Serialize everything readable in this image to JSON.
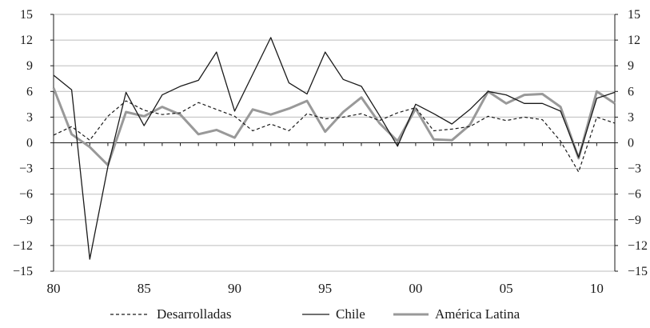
{
  "chart_data": {
    "type": "line",
    "title": "",
    "xlabel": "",
    "ylabel": "",
    "ylim": [
      -15,
      15
    ],
    "xlim": [
      1980,
      2011
    ],
    "grid": true,
    "legend_position": "bottom",
    "left_ticks": [
      {
        "v": 15,
        "label": "15"
      },
      {
        "v": 12,
        "label": "12"
      },
      {
        "v": 9,
        "label": "9"
      },
      {
        "v": 6,
        "label": "6"
      },
      {
        "v": 3,
        "label": "3"
      },
      {
        "v": 0,
        "label": "0"
      },
      {
        "v": -3,
        "label": "−3"
      },
      {
        "v": -6,
        "label": "−6"
      },
      {
        "v": -9,
        "label": "−9"
      },
      {
        "v": -12,
        "label": "−12"
      },
      {
        "v": -15,
        "label": "−15"
      }
    ],
    "right_ticks": [
      {
        "v": 15,
        "label": "15"
      },
      {
        "v": 12,
        "label": "12"
      },
      {
        "v": 9,
        "label": "9"
      },
      {
        "v": 6,
        "label": "6"
      },
      {
        "v": 3,
        "label": "3"
      },
      {
        "v": 0,
        "label": "0"
      },
      {
        "v": -3,
        "label": "−3"
      },
      {
        "v": -6,
        "label": "−6"
      },
      {
        "v": -9,
        "label": "−9"
      },
      {
        "v": -12,
        "label": "−12"
      },
      {
        "v": -15,
        "label": "−15"
      }
    ],
    "x_ticks": [
      {
        "v": 1980,
        "label": "80"
      },
      {
        "v": 1985,
        "label": "85"
      },
      {
        "v": 1990,
        "label": "90"
      },
      {
        "v": 1995,
        "label": "95"
      },
      {
        "v": 2000,
        "label": "00"
      },
      {
        "v": 2005,
        "label": "05"
      },
      {
        "v": 2010,
        "label": "10"
      }
    ],
    "x": [
      1980,
      1981,
      1982,
      1983,
      1984,
      1985,
      1986,
      1987,
      1988,
      1989,
      1990,
      1991,
      1992,
      1993,
      1994,
      1995,
      1996,
      1997,
      1998,
      1999,
      2000,
      2001,
      2002,
      2003,
      2004,
      2005,
      2006,
      2007,
      2008,
      2009,
      2010,
      2011
    ],
    "series": [
      {
        "name": "Desarrolladas",
        "color": "#1a1a1a",
        "style": "dashed",
        "values": [
          0.9,
          1.9,
          0.3,
          3.1,
          4.9,
          3.8,
          3.3,
          3.5,
          4.7,
          3.9,
          3.1,
          1.4,
          2.2,
          1.4,
          3.4,
          2.8,
          3.0,
          3.4,
          2.6,
          3.5,
          4.1,
          1.4,
          1.6,
          1.9,
          3.1,
          2.6,
          3.0,
          2.7,
          0.2,
          -3.4,
          3.0,
          2.3
        ]
      },
      {
        "name": "Chile",
        "color": "#1a1a1a",
        "style": "solid",
        "values": [
          7.9,
          6.2,
          -13.6,
          -2.8,
          5.9,
          2.0,
          5.6,
          6.6,
          7.3,
          10.6,
          3.7,
          8.0,
          12.3,
          7.0,
          5.7,
          10.6,
          7.4,
          6.6,
          3.2,
          -0.4,
          4.5,
          3.4,
          2.2,
          3.9,
          6.0,
          5.6,
          4.6,
          4.6,
          3.7,
          -1.7,
          5.2,
          5.9
        ]
      },
      {
        "name": "América Latina",
        "color": "#999999",
        "style": "solid",
        "values": [
          6.4,
          1.0,
          -0.5,
          -2.6,
          3.6,
          3.1,
          4.2,
          3.3,
          1.0,
          1.5,
          0.6,
          3.9,
          3.3,
          4.0,
          4.9,
          1.3,
          3.6,
          5.3,
          2.3,
          0.2,
          4.0,
          0.4,
          0.3,
          2.1,
          6.0,
          4.6,
          5.6,
          5.7,
          4.2,
          -1.8,
          6.0,
          4.6
        ]
      }
    ]
  }
}
